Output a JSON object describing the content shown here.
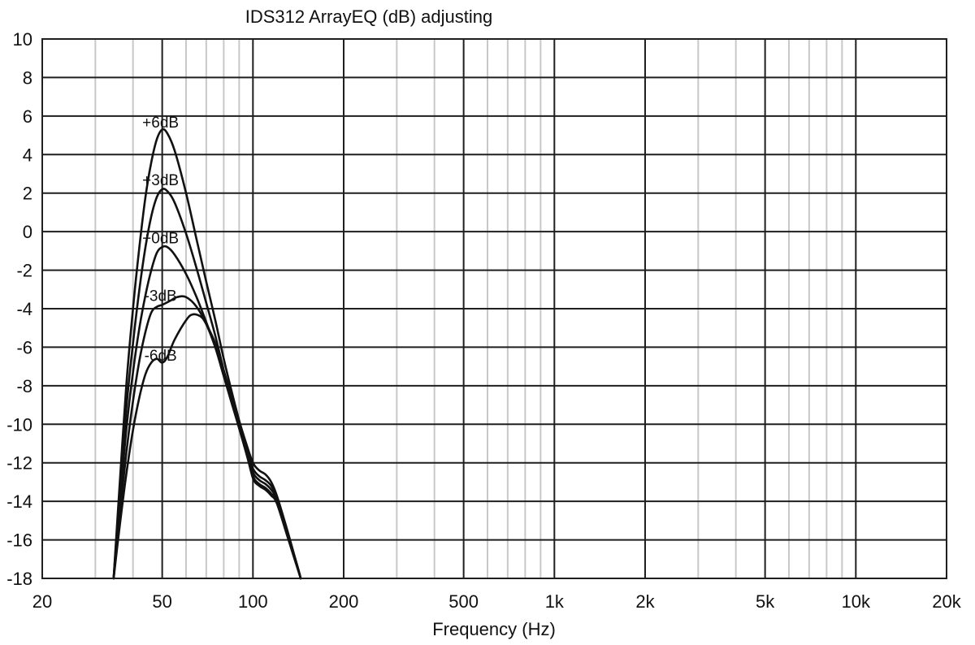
{
  "chart_data": {
    "type": "line",
    "title": "IDS312 ArrayEQ (dB) adjusting",
    "xlabel": "Frequency (Hz)",
    "ylabel": "",
    "x_scale": "log",
    "xlim": [
      20,
      20000
    ],
    "ylim": [
      -18,
      10
    ],
    "x_ticks": [
      {
        "value": 20,
        "label": "20"
      },
      {
        "value": 50,
        "label": "50"
      },
      {
        "value": 100,
        "label": "100"
      },
      {
        "value": 200,
        "label": "200"
      },
      {
        "value": 500,
        "label": "500"
      },
      {
        "value": 1000,
        "label": "1k"
      },
      {
        "value": 2000,
        "label": "2k"
      },
      {
        "value": 5000,
        "label": "5k"
      },
      {
        "value": 10000,
        "label": "10k"
      },
      {
        "value": 20000,
        "label": "20k"
      }
    ],
    "y_ticks": [
      {
        "value": 10,
        "label": "10"
      },
      {
        "value": 8,
        "label": "8"
      },
      {
        "value": 6,
        "label": "6"
      },
      {
        "value": 4,
        "label": "4"
      },
      {
        "value": 2,
        "label": "2"
      },
      {
        "value": 0,
        "label": "0"
      },
      {
        "value": -2,
        "label": "-2"
      },
      {
        "value": -4,
        "label": "-4"
      },
      {
        "value": -6,
        "label": "-6"
      },
      {
        "value": -8,
        "label": "-8"
      },
      {
        "value": -10,
        "label": "-10"
      },
      {
        "value": -12,
        "label": "-12"
      },
      {
        "value": -14,
        "label": "-14"
      },
      {
        "value": -16,
        "label": "-16"
      },
      {
        "value": -18,
        "label": "-18"
      }
    ],
    "grid": true,
    "series": [
      {
        "name": "+6dB",
        "label_at": [
          50,
          5.7
        ],
        "points": [
          [
            34.5,
            -18
          ],
          [
            36,
            -13.5
          ],
          [
            38,
            -8
          ],
          [
            40,
            -4
          ],
          [
            42,
            -0.8
          ],
          [
            44,
            1.8
          ],
          [
            46,
            3.6
          ],
          [
            48,
            4.8
          ],
          [
            50,
            5.3
          ],
          [
            52,
            5.1
          ],
          [
            55,
            4.2
          ],
          [
            60,
            2.0
          ],
          [
            65,
            -0.4
          ],
          [
            70,
            -2.6
          ],
          [
            75,
            -4.6
          ],
          [
            80,
            -6.6
          ],
          [
            85,
            -8.3
          ],
          [
            90,
            -9.8
          ],
          [
            95,
            -11.0
          ],
          [
            100,
            -12.0
          ],
          [
            105,
            -12.4
          ],
          [
            110,
            -12.6
          ],
          [
            115,
            -13.0
          ],
          [
            120,
            -13.7
          ],
          [
            130,
            -15.5
          ],
          [
            140,
            -17.3
          ],
          [
            144,
            -18
          ]
        ]
      },
      {
        "name": "+3dB",
        "label_at": [
          50,
          2.7
        ],
        "points": [
          [
            34.5,
            -18
          ],
          [
            36,
            -14
          ],
          [
            38,
            -9.2
          ],
          [
            40,
            -5.8
          ],
          [
            42,
            -3.0
          ],
          [
            44,
            -0.8
          ],
          [
            46,
            0.8
          ],
          [
            48,
            1.8
          ],
          [
            50,
            2.2
          ],
          [
            52,
            2.1
          ],
          [
            55,
            1.5
          ],
          [
            60,
            -0.1
          ],
          [
            65,
            -1.9
          ],
          [
            70,
            -3.7
          ],
          [
            75,
            -5.4
          ],
          [
            80,
            -7.2
          ],
          [
            85,
            -8.8
          ],
          [
            90,
            -10.1
          ],
          [
            95,
            -11.3
          ],
          [
            100,
            -12.3
          ],
          [
            105,
            -12.7
          ],
          [
            110,
            -12.9
          ],
          [
            115,
            -13.2
          ],
          [
            120,
            -13.8
          ],
          [
            130,
            -15.6
          ],
          [
            140,
            -17.3
          ],
          [
            144,
            -18
          ]
        ]
      },
      {
        "name": "+0dB",
        "label_at": [
          50,
          -0.3
        ],
        "points": [
          [
            34.5,
            -18
          ],
          [
            36,
            -14.5
          ],
          [
            38,
            -10.3
          ],
          [
            40,
            -7.3
          ],
          [
            42,
            -5.0
          ],
          [
            44,
            -3.3
          ],
          [
            46,
            -2.0
          ],
          [
            48,
            -1.1
          ],
          [
            50,
            -0.8
          ],
          [
            52,
            -0.8
          ],
          [
            55,
            -1.2
          ],
          [
            60,
            -2.2
          ],
          [
            65,
            -3.4
          ],
          [
            70,
            -4.7
          ],
          [
            75,
            -6.0
          ],
          [
            80,
            -7.5
          ],
          [
            85,
            -8.9
          ],
          [
            90,
            -10.2
          ],
          [
            95,
            -11.4
          ],
          [
            100,
            -12.5
          ],
          [
            105,
            -12.9
          ],
          [
            110,
            -13.1
          ],
          [
            115,
            -13.4
          ],
          [
            120,
            -13.9
          ],
          [
            130,
            -15.6
          ],
          [
            140,
            -17.3
          ],
          [
            144,
            -18
          ]
        ]
      },
      {
        "name": "-3dB",
        "label_at": [
          50,
          -3.3
        ],
        "points": [
          [
            34.5,
            -18
          ],
          [
            36,
            -15
          ],
          [
            38,
            -11.5
          ],
          [
            40,
            -8.8
          ],
          [
            42,
            -6.7
          ],
          [
            44,
            -5.2
          ],
          [
            46,
            -4.2
          ],
          [
            48,
            -3.9
          ],
          [
            50,
            -3.8
          ],
          [
            53,
            -3.6
          ],
          [
            56,
            -3.4
          ],
          [
            60,
            -3.4
          ],
          [
            65,
            -3.9
          ],
          [
            70,
            -4.8
          ],
          [
            75,
            -6.0
          ],
          [
            80,
            -7.4
          ],
          [
            85,
            -8.8
          ],
          [
            90,
            -10.2
          ],
          [
            95,
            -11.5
          ],
          [
            100,
            -12.7
          ],
          [
            105,
            -13.1
          ],
          [
            110,
            -13.3
          ],
          [
            115,
            -13.6
          ],
          [
            120,
            -14.0
          ],
          [
            130,
            -15.7
          ],
          [
            140,
            -17.3
          ],
          [
            144,
            -18
          ]
        ]
      },
      {
        "name": "-6dB",
        "label_at": [
          50,
          -6.4
        ],
        "points": [
          [
            34.5,
            -18
          ],
          [
            36,
            -15.5
          ],
          [
            38,
            -12.6
          ],
          [
            40,
            -10.3
          ],
          [
            42,
            -8.6
          ],
          [
            44,
            -7.4
          ],
          [
            46,
            -6.8
          ],
          [
            48,
            -6.6
          ],
          [
            50,
            -6.8
          ],
          [
            52,
            -6.5
          ],
          [
            55,
            -5.6
          ],
          [
            60,
            -4.6
          ],
          [
            63,
            -4.3
          ],
          [
            67,
            -4.4
          ],
          [
            70,
            -4.8
          ],
          [
            75,
            -5.8
          ],
          [
            80,
            -7.2
          ],
          [
            85,
            -8.6
          ],
          [
            90,
            -10.0
          ],
          [
            95,
            -11.4
          ],
          [
            100,
            -12.8
          ],
          [
            105,
            -13.2
          ],
          [
            110,
            -13.4
          ],
          [
            115,
            -13.7
          ],
          [
            120,
            -14.1
          ],
          [
            130,
            -15.8
          ],
          [
            140,
            -17.4
          ],
          [
            144,
            -18
          ]
        ]
      }
    ]
  }
}
